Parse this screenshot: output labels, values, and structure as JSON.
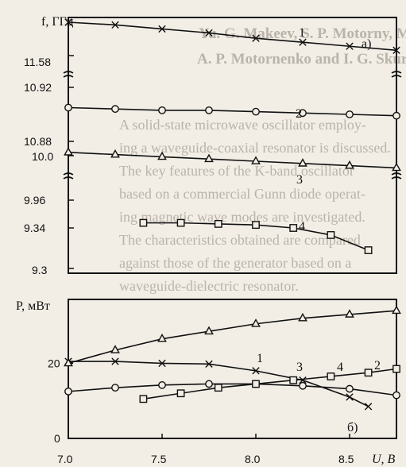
{
  "background_text": {
    "authors_line1": "Yu. G. Makeev, S. P. Motorny, M.",
    "authors_line2": "A. P. Motornenko and I. G. Skuratovsky",
    "abstract_lines": [
      "A solid-state microwave oscillator employ-",
      "ing a waveguide-coaxial resonator is discussed.",
      "The key features of the K-band oscillator",
      "based on a commercial Gunn diode operat-",
      "ing magnetic wave modes are investigated.",
      "The characteristics obtained are compared",
      "against those of the generator based on a",
      "waveguide-dielectric resonator."
    ]
  },
  "chart_data": [
    {
      "type": "line",
      "panel_label": "а)",
      "ylabel": "f, ГГц",
      "broken_axis": true,
      "segments": [
        {
          "ylim_label_top": "",
          "ylim_label_bottom": "11.58",
          "y_ticks": [
            "11.58"
          ]
        },
        {
          "y_ticks": [
            "10.92",
            "10.88"
          ]
        },
        {
          "y_ticks": [
            "10.0",
            "9.96"
          ]
        },
        {
          "y_ticks": [
            "9.34",
            "9.3"
          ]
        }
      ],
      "x_range": [
        7.0,
        8.75
      ],
      "series": [
        {
          "name": "1",
          "marker": "x",
          "segment": 0,
          "x": [
            7.0,
            7.25,
            7.5,
            7.75,
            8.0,
            8.25,
            8.5,
            8.75
          ],
          "y": [
            11.605,
            11.603,
            11.6,
            11.597,
            11.593,
            11.59,
            11.587,
            11.584
          ]
        },
        {
          "name": "2",
          "marker": "circle",
          "segment": 1,
          "x": [
            7.0,
            7.25,
            7.5,
            7.75,
            8.0,
            8.25,
            8.5,
            8.75
          ],
          "y": [
            10.905,
            10.904,
            10.903,
            10.903,
            10.902,
            10.901,
            10.9,
            10.899
          ]
        },
        {
          "name": "3",
          "marker": "triangle",
          "segment": 2,
          "x": [
            7.0,
            7.25,
            7.5,
            7.75,
            8.0,
            8.25,
            8.5,
            8.75
          ],
          "y": [
            10.003,
            10.001,
            9.999,
            9.997,
            9.995,
            9.993,
            9.991,
            9.989
          ]
        },
        {
          "name": "4",
          "marker": "square",
          "segment": 3,
          "x": [
            7.4,
            7.6,
            7.8,
            8.0,
            8.2,
            8.4,
            8.6
          ],
          "y": [
            9.345,
            9.345,
            9.344,
            9.343,
            9.34,
            9.333,
            9.318
          ]
        }
      ]
    },
    {
      "type": "line",
      "panel_label": "б)",
      "ylabel": "P, мВт",
      "xlabel": "U, B",
      "x_ticks": [
        "7.0",
        "7.5",
        "8.0",
        "8.5"
      ],
      "y_ticks": [
        "0",
        "20"
      ],
      "xlim": [
        7.0,
        8.75
      ],
      "ylim": [
        0,
        37
      ],
      "series": [
        {
          "name": "1",
          "marker": "x",
          "x": [
            7.0,
            7.25,
            7.5,
            7.75,
            8.0,
            8.25,
            8.5,
            8.6
          ],
          "y": [
            20.5,
            20.5,
            20.0,
            19.8,
            18.0,
            15.5,
            11.0,
            8.5
          ]
        },
        {
          "name": "2",
          "marker": "circle",
          "x": [
            7.0,
            7.25,
            7.5,
            7.75,
            8.0,
            8.25,
            8.5,
            8.75
          ],
          "y": [
            12.5,
            13.5,
            14.2,
            14.5,
            14.5,
            14.0,
            13.2,
            11.5
          ]
        },
        {
          "name": "3",
          "marker": "triangle",
          "x": [
            7.0,
            7.25,
            7.5,
            7.75,
            8.0,
            8.25,
            8.5,
            8.75
          ],
          "y": [
            20.0,
            23.5,
            26.5,
            28.5,
            30.5,
            32.0,
            33.0,
            34.0
          ]
        },
        {
          "name": "4",
          "marker": "square",
          "x": [
            7.4,
            7.6,
            7.8,
            8.0,
            8.2,
            8.4,
            8.6,
            8.75
          ],
          "y": [
            10.5,
            12.0,
            13.5,
            14.5,
            15.5,
            16.5,
            17.5,
            18.5
          ]
        }
      ]
    }
  ]
}
